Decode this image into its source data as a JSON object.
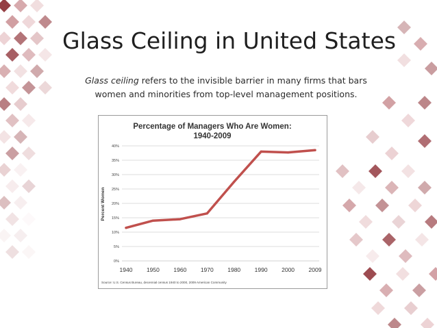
{
  "slide": {
    "title": "Glass Ceiling in United States",
    "definition_term": "Glass ceiling",
    "definition_rest": " refers to the invisible barrier in many firms that bars women and minorities from top-level management positions."
  },
  "colors": {
    "line": "#c0504d",
    "grid": "#d0d0d0",
    "decor_dark": "#8a2a30",
    "decor_mid": "#c98e92",
    "decor_light": "#e8c8ca"
  },
  "chart_data": {
    "type": "line",
    "title_line1": "Percentage of Managers Who Are Women:",
    "title_line2": "1940-2009",
    "xlabel": "",
    "ylabel": "Percent Women",
    "categories": [
      "1940",
      "1950",
      "1960",
      "1970",
      "1980",
      "1990",
      "2000",
      "2009"
    ],
    "series": [
      {
        "values": [
          11.5,
          14,
          14.5,
          16.5,
          27.5,
          38,
          37.7,
          38.5
        ]
      }
    ],
    "y_ticks": [
      "0%",
      "5%",
      "10%",
      "15%",
      "20%",
      "25%",
      "30%",
      "35%",
      "40%"
    ],
    "ylim": [
      0,
      40
    ],
    "grid": true,
    "source": "Source: U.S. Census Bureau, decennial census 1940 to 2000, 2009 American Community"
  }
}
